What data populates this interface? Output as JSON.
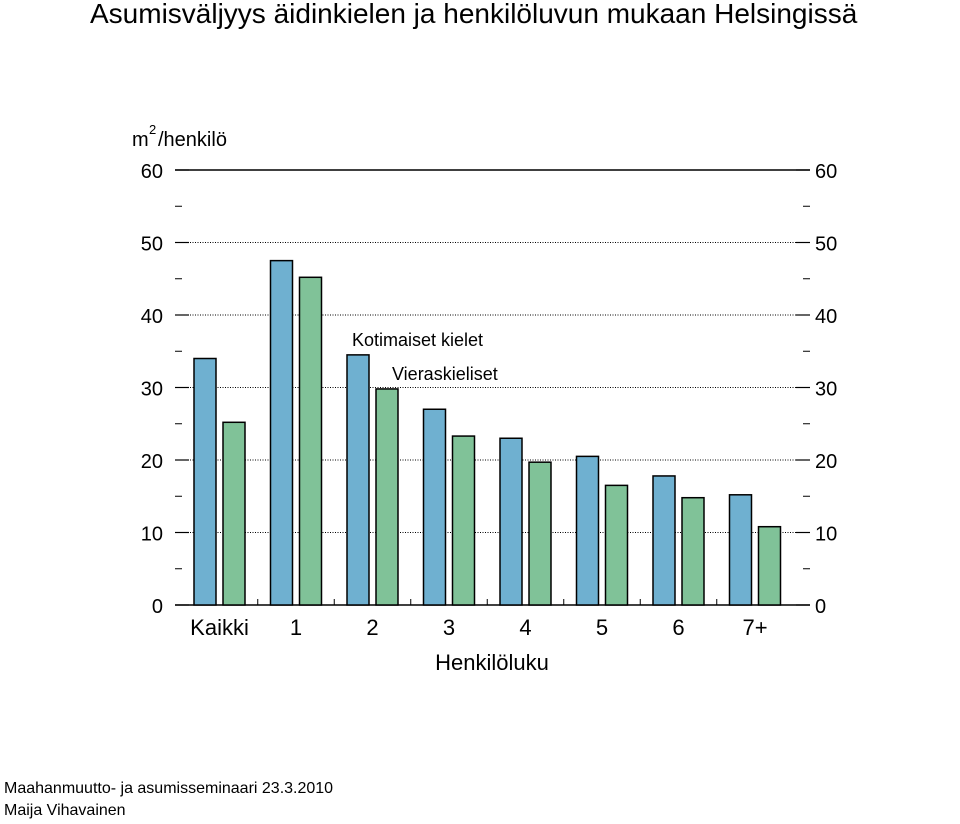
{
  "page": {
    "title": "Asumisväljyys äidinkielen ja henkilöluvun mukaan Helsingissä",
    "footer_line1": "Maahanmuutto- ja asumisseminaari 23.3.2010",
    "footer_line2": "Maija Vihavainen"
  },
  "chart_data": {
    "type": "bar",
    "title": "Asumisväljyys äidinkielen ja henkilöluvun mukaan Helsingissä",
    "ylabel": "m",
    "ylabel_superscript": "2",
    "ylabel_suffix": "/henkilö",
    "xlabel": "Henkilöluku",
    "categories": [
      "Kaikki",
      "1",
      "2",
      "3",
      "4",
      "5",
      "6",
      "7+"
    ],
    "ylim": [
      0,
      60
    ],
    "yticks": [
      0,
      10,
      20,
      30,
      40,
      50,
      60
    ],
    "grid": true,
    "right_axis_labels": true,
    "series": [
      {
        "name": "Kotimaiset kielet",
        "color": "#6fb0d0",
        "values": [
          34,
          47.5,
          34.5,
          27,
          23,
          20.5,
          17.8,
          15.2
        ]
      },
      {
        "name": "Vieraskieliset",
        "color": "#80c298",
        "values": [
          25.2,
          45.2,
          29.8,
          23.3,
          19.7,
          16.5,
          14.8,
          10.8
        ]
      }
    ]
  }
}
